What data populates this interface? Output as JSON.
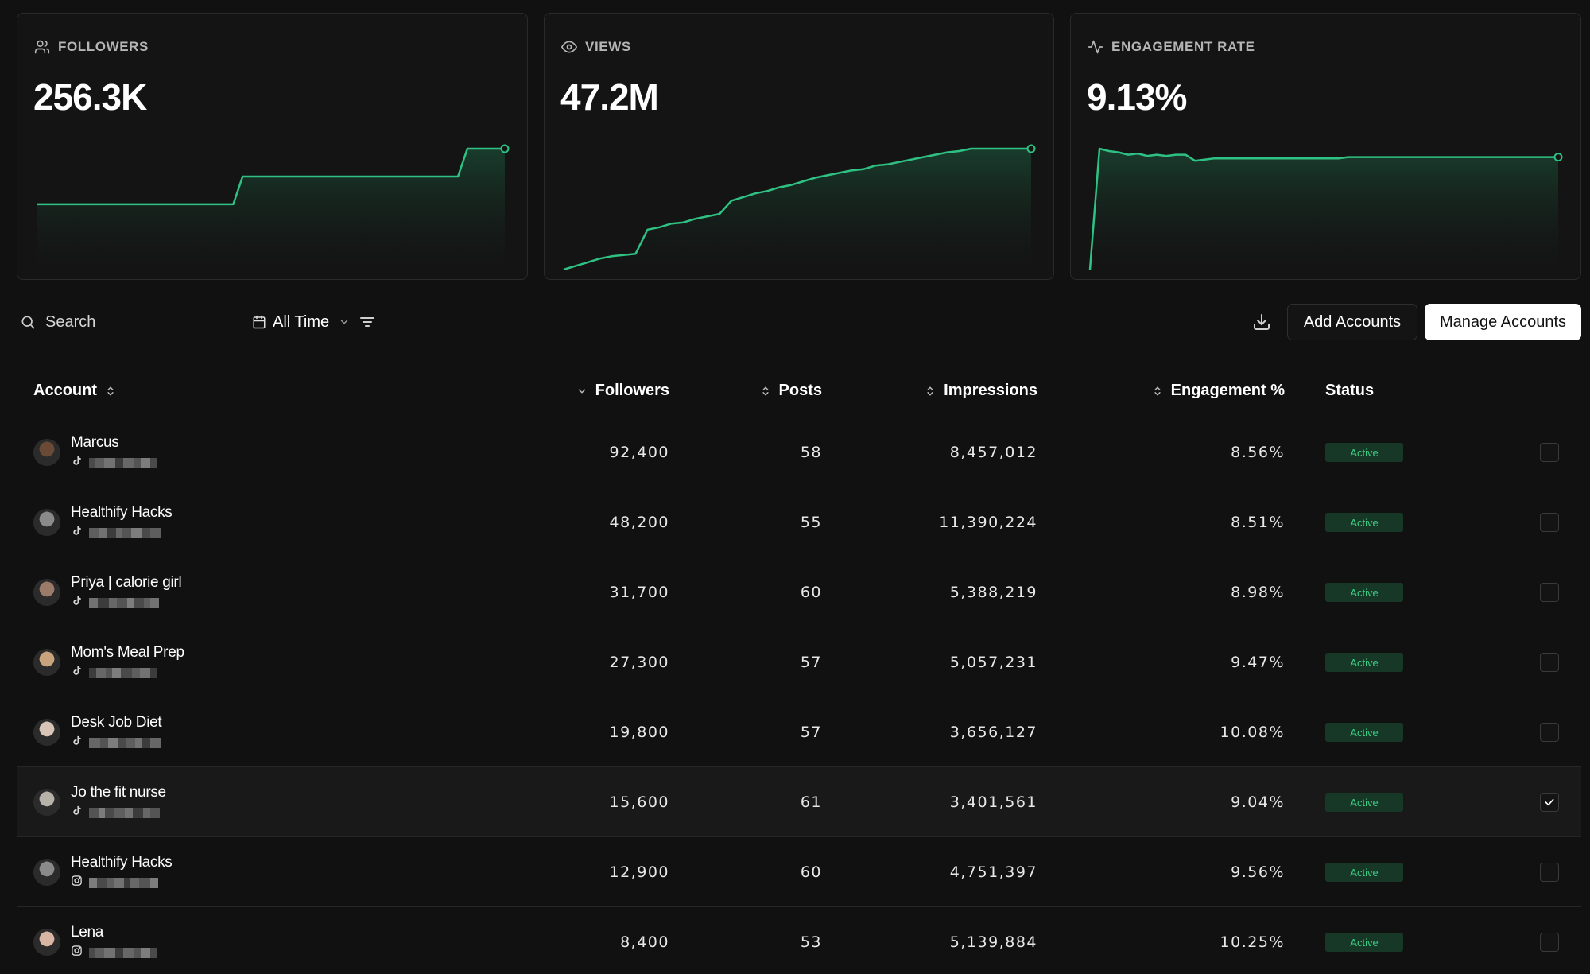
{
  "colors": {
    "accent": "#2fc183",
    "accent_fill_top": "#1a4a35",
    "badge_bg": "#173826",
    "badge_text": "#3ccd85",
    "background": "#111111",
    "card_bg": "#141414"
  },
  "metrics": [
    {
      "icon": "users-icon",
      "label": "FOLLOWERS",
      "value": "256.3K",
      "trend": [
        0.54,
        0.54,
        0.54,
        0.54,
        0.54,
        0.54,
        0.54,
        0.54,
        0.54,
        0.54,
        0.54,
        0.54,
        0.54,
        0.54,
        0.54,
        0.54,
        0.54,
        0.54,
        0.54,
        0.54,
        0.54,
        0.54,
        0.77,
        0.77,
        0.77,
        0.77,
        0.77,
        0.77,
        0.77,
        0.77,
        0.77,
        0.77,
        0.77,
        0.77,
        0.77,
        0.77,
        0.77,
        0.77,
        0.77,
        0.77,
        0.77,
        0.77,
        0.77,
        0.77,
        0.77,
        0.77,
        1.0,
        1.0,
        1.0,
        1.0,
        1.0
      ]
    },
    {
      "icon": "eye-icon",
      "label": "VIEWS",
      "value": "47.2M",
      "trend": [
        0.0,
        0.03,
        0.06,
        0.09,
        0.11,
        0.12,
        0.13,
        0.33,
        0.35,
        0.38,
        0.39,
        0.42,
        0.44,
        0.46,
        0.57,
        0.6,
        0.63,
        0.65,
        0.68,
        0.7,
        0.73,
        0.76,
        0.78,
        0.8,
        0.82,
        0.83,
        0.86,
        0.87,
        0.89,
        0.91,
        0.93,
        0.95,
        0.97,
        0.98,
        1.0,
        1.0,
        1.0,
        1.0,
        1.0,
        1.0
      ]
    },
    {
      "icon": "activity-icon",
      "label": "ENGAGEMENT RATE",
      "value": "9.13%",
      "trend": [
        0.0,
        1.0,
        0.98,
        0.97,
        0.95,
        0.96,
        0.94,
        0.95,
        0.94,
        0.95,
        0.95,
        0.9,
        0.91,
        0.92,
        0.92,
        0.92,
        0.92,
        0.92,
        0.92,
        0.92,
        0.92,
        0.92,
        0.92,
        0.92,
        0.92,
        0.92,
        0.92,
        0.93,
        0.93,
        0.93,
        0.93,
        0.93,
        0.93,
        0.93,
        0.93,
        0.93,
        0.93,
        0.93,
        0.93,
        0.93,
        0.93,
        0.93,
        0.93,
        0.93,
        0.93,
        0.93,
        0.93,
        0.93,
        0.93,
        0.93
      ]
    }
  ],
  "toolbar": {
    "search_placeholder": "Search",
    "timeframe": "All Time",
    "add_accounts": "Add Accounts",
    "manage_accounts": "Manage Accounts"
  },
  "table": {
    "headers": {
      "account": "Account",
      "followers": "Followers",
      "posts": "Posts",
      "impressions": "Impressions",
      "engagement": "Engagement %",
      "status": "Status"
    },
    "rows": [
      {
        "name": "Marcus",
        "platform": "tiktok",
        "followers": "92,400",
        "posts": "58",
        "impressions": "8,457,012",
        "engagement": "8.56%",
        "status": "Active",
        "checked": false,
        "avatar_color": "#6b4a35"
      },
      {
        "name": "Healthify Hacks",
        "platform": "tiktok",
        "followers": "48,200",
        "posts": "55",
        "impressions": "11,390,224",
        "engagement": "8.51%",
        "status": "Active",
        "checked": false,
        "avatar_color": "#8a8a8a"
      },
      {
        "name": "Priya | calorie girl",
        "platform": "tiktok",
        "followers": "31,700",
        "posts": "60",
        "impressions": "5,388,219",
        "engagement": "8.98%",
        "status": "Active",
        "checked": false,
        "avatar_color": "#9b7a6a"
      },
      {
        "name": "Mom's Meal Prep",
        "platform": "tiktok",
        "followers": "27,300",
        "posts": "57",
        "impressions": "5,057,231",
        "engagement": "9.47%",
        "status": "Active",
        "checked": false,
        "avatar_color": "#c9a27e"
      },
      {
        "name": "Desk Job Diet",
        "platform": "tiktok",
        "followers": "19,800",
        "posts": "57",
        "impressions": "3,656,127",
        "engagement": "10.08%",
        "status": "Active",
        "checked": false,
        "avatar_color": "#d8c4b6"
      },
      {
        "name": "Jo the fit nurse",
        "platform": "tiktok",
        "followers": "15,600",
        "posts": "61",
        "impressions": "3,401,561",
        "engagement": "9.04%",
        "status": "Active",
        "checked": true,
        "avatar_color": "#b7b2a8"
      },
      {
        "name": "Healthify Hacks",
        "platform": "instagram",
        "followers": "12,900",
        "posts": "60",
        "impressions": "4,751,397",
        "engagement": "9.56%",
        "status": "Active",
        "checked": false,
        "avatar_color": "#8a8a8a"
      },
      {
        "name": "Lena",
        "platform": "instagram",
        "followers": "8,400",
        "posts": "53",
        "impressions": "5,139,884",
        "engagement": "10.25%",
        "status": "Active",
        "checked": false,
        "avatar_color": "#d9b6a3"
      }
    ]
  }
}
